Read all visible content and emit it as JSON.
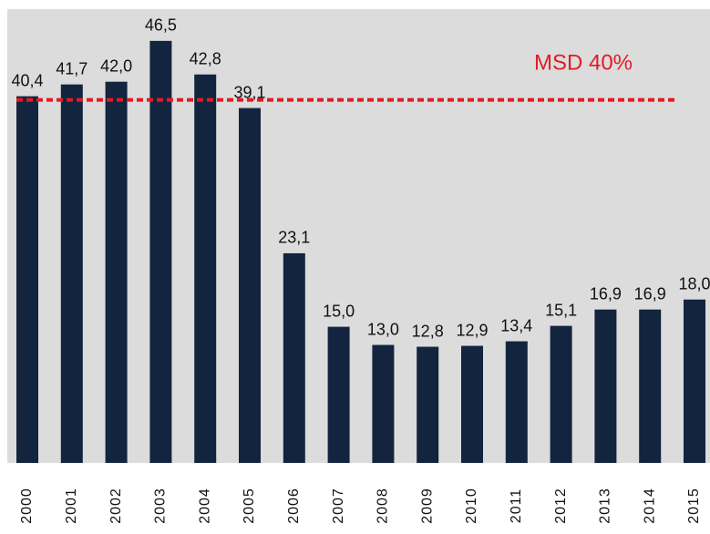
{
  "chart_data": {
    "type": "bar",
    "categories": [
      "2000",
      "2001",
      "2002",
      "2003",
      "2004",
      "2005",
      "2006",
      "2007",
      "2008",
      "2009",
      "2010",
      "2011",
      "2012",
      "2013",
      "2014",
      "2015"
    ],
    "values": [
      40.4,
      41.7,
      42.0,
      46.5,
      42.8,
      39.1,
      23.1,
      15.0,
      13.0,
      12.8,
      12.9,
      13.4,
      15.1,
      16.9,
      16.9,
      18.0
    ],
    "value_labels": [
      "40,4",
      "41,7",
      "42,0",
      "46,5",
      "42,8",
      "39,1",
      "23,1",
      "15,0",
      "13,0",
      "12,8",
      "12,9",
      "13,4",
      "15,1",
      "16,9",
      "16,9",
      "18,0"
    ],
    "color": "#13243f",
    "ylim": [
      0,
      50
    ],
    "reference_line": {
      "value": 40,
      "label": "MSD 40%",
      "color": "#e31b23"
    }
  }
}
